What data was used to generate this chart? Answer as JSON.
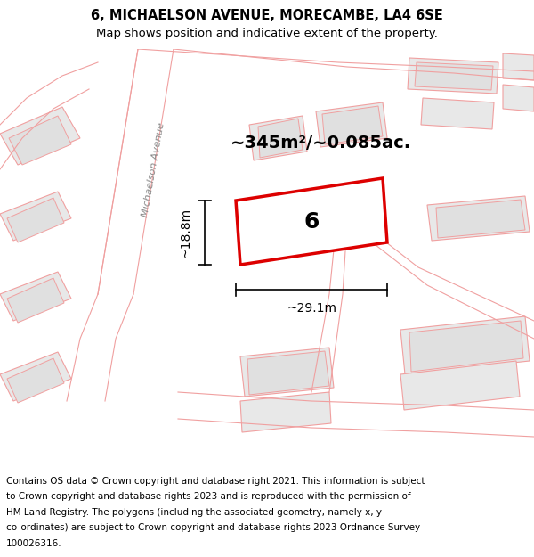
{
  "title_line1": "6, MICHAELSON AVENUE, MORECAMBE, LA4 6SE",
  "title_line2": "Map shows position and indicative extent of the property.",
  "footer_lines": [
    "Contains OS data © Crown copyright and database right 2021. This information is subject",
    "to Crown copyright and database rights 2023 and is reproduced with the permission of",
    "HM Land Registry. The polygons (including the associated geometry, namely x, y",
    "co-ordinates) are subject to Crown copyright and database rights 2023 Ordnance Survey",
    "100026316."
  ],
  "area_text": "~345m²/~0.085ac.",
  "property_number": "6",
  "dim_width": "~29.1m",
  "dim_height": "~18.8m",
  "map_bg": "#ffffff",
  "property_fill": "#ffffff",
  "property_edge": "#dd0000",
  "road_line_color": "#f0a0a0",
  "building_fill": "#e8e8e8",
  "building_edge": "#f0a0a0",
  "inner_building_fill": "#e0e0e0",
  "inner_building_edge": "#f0a0a0",
  "street_label": "Michaelson Avenue",
  "title_fontsize": 10.5,
  "subtitle_fontsize": 9.5,
  "footer_fontsize": 7.5,
  "area_fontsize": 14,
  "number_fontsize": 18,
  "dim_fontsize": 10
}
